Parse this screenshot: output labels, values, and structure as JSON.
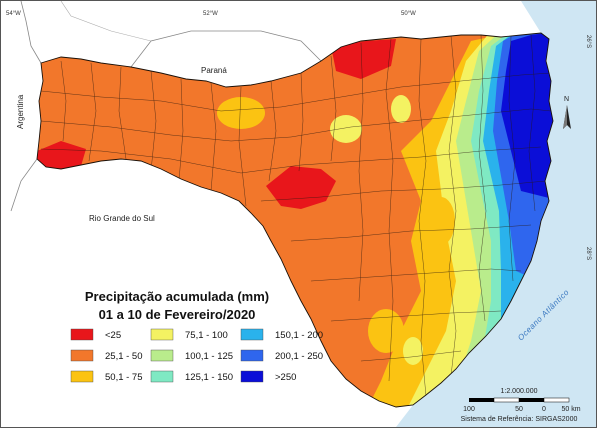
{
  "map": {
    "title_line1": "Precipitação acumulada (mm)",
    "title_line2": "01 a 10 de Fevereiro/2020",
    "neighbors": {
      "north": "Paraná",
      "south": "Rio Grande do Sul",
      "west": "Argentina"
    },
    "ocean": "Oceano Atlântico",
    "coords": {
      "lon1": "54°W",
      "lon2": "52°W",
      "lon3": "50°W",
      "lat1": "26°S",
      "lat2": "28°S"
    },
    "north_label": "N",
    "scale_text": "1:2.000.000",
    "scale_ticks": [
      "100",
      "50",
      "0",
      "50 km"
    ],
    "reference": "Sistema de Referência: SIRGAS2000"
  },
  "legend": [
    {
      "label": "<25",
      "color": "#e8161b"
    },
    {
      "label": "25,1 - 50",
      "color": "#f2772b"
    },
    {
      "label": "50,1 - 75",
      "color": "#fbc312"
    },
    {
      "label": "75,1 - 100",
      "color": "#f4f262"
    },
    {
      "label": "100,1 - 125",
      "color": "#b9ec8c"
    },
    {
      "label": "125,1 - 150",
      "color": "#7fe9c3"
    },
    {
      "label": "150,1 - 200",
      "color": "#2ab2ec"
    },
    {
      "label": "200,1 - 250",
      "color": "#2f66ee"
    },
    {
      "label": ">250",
      "color": "#0b0ed7"
    }
  ]
}
